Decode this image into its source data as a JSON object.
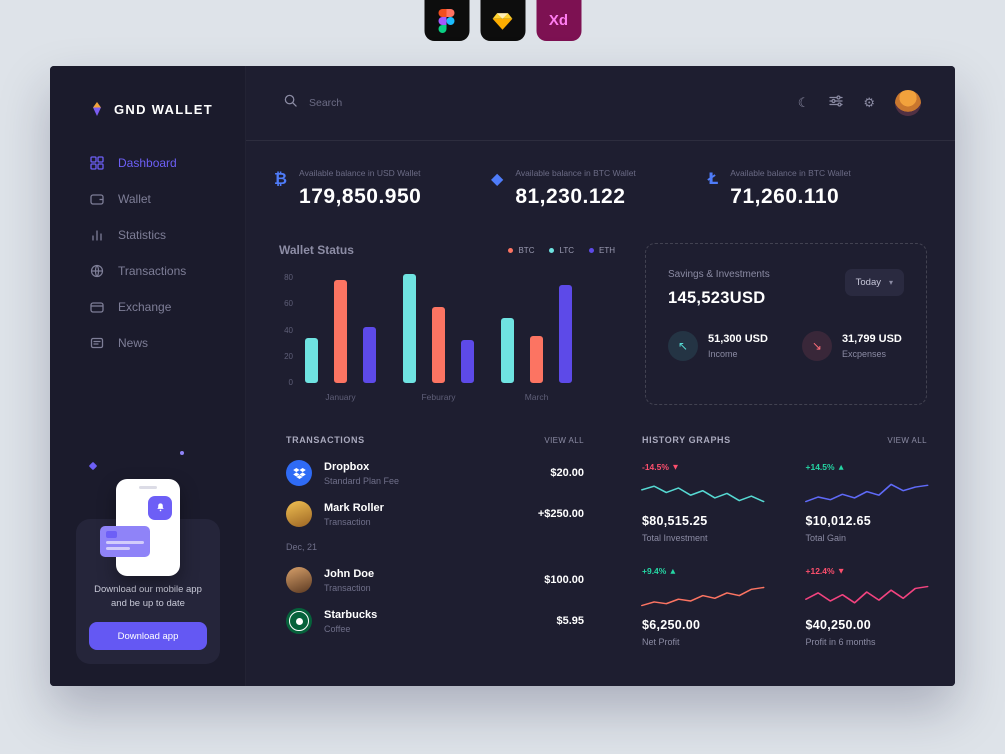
{
  "colors": {
    "accent": "#6d5ff6",
    "page_background": "#dee3e9",
    "dashboard_background": "#1e1e30",
    "sidebar_background": "#1b1b2c",
    "positive": "#25d6a4",
    "negative": "#fd4f6d"
  },
  "header_icons": [
    {
      "name": "figma"
    },
    {
      "name": "sketch"
    },
    {
      "name": "adobe-xd",
      "label": "Xd"
    }
  ],
  "sidebar": {
    "logo_text": "GND WALLET",
    "nav": [
      {
        "label": "Dashboard",
        "active": true
      },
      {
        "label": "Wallet"
      },
      {
        "label": "Statistics"
      },
      {
        "label": "Transactions"
      },
      {
        "label": "Exchange"
      },
      {
        "label": "News"
      }
    ],
    "promo": {
      "text": "Download our mobile app and be up to date",
      "button_label": "Download app"
    }
  },
  "topbar": {
    "search_placeholder": "Search"
  },
  "balances": [
    {
      "icon": "bitcoin-icon",
      "glyph": "₿",
      "label": "Available balance in USD Wallet",
      "value": "179,850.950"
    },
    {
      "icon": "ethereum-icon",
      "glyph": "◆",
      "label": "Available balance in BTC Wallet",
      "value": "81,230.122"
    },
    {
      "icon": "litecoin-icon",
      "glyph": "Ł",
      "label": "Available balance in BTC Wallet",
      "value": "71,260.110"
    }
  ],
  "wallet_status": {
    "legend": [
      {
        "label": "BTC",
        "color": "#fc7462"
      },
      {
        "label": "LTC",
        "color": "#6fe3e1"
      },
      {
        "label": "ETH",
        "color": "#5d4ae8"
      }
    ]
  },
  "chart_data": [
    {
      "type": "bar",
      "title": "Wallet Status",
      "categories": [
        "January",
        "Feburary",
        "March"
      ],
      "series": [
        {
          "name": "LTC",
          "color": "#6fe3e1",
          "values": [
            33,
            79,
            47
          ]
        },
        {
          "name": "BTC",
          "color": "#fc7462",
          "values": [
            75,
            55,
            34
          ]
        },
        {
          "name": "ETH",
          "color": "#5d4ae8",
          "values": [
            41,
            31,
            71
          ]
        }
      ],
      "ylim": [
        0,
        80
      ],
      "yticks": [
        0,
        20,
        40,
        60,
        80
      ],
      "grid": false,
      "legend_position": "top-right"
    },
    {
      "type": "line",
      "name": "total-investment-trend",
      "color": "#56d9d2",
      "values": [
        16,
        20,
        13,
        18,
        10,
        15,
        7,
        12,
        4,
        9,
        3
      ]
    },
    {
      "type": "line",
      "name": "total-gain-trend",
      "color": "#5f6af8",
      "values": [
        3,
        8,
        5,
        11,
        7,
        14,
        10,
        22,
        15,
        19,
        21
      ]
    },
    {
      "type": "line",
      "name": "net-profit-trend",
      "color": "#fc7462",
      "values": [
        3,
        7,
        5,
        10,
        8,
        14,
        11,
        17,
        14,
        21,
        23
      ]
    },
    {
      "type": "line",
      "name": "profit-6-months-trend",
      "color": "#f3437f",
      "values": [
        10,
        17,
        8,
        15,
        6,
        18,
        9,
        20,
        11,
        22,
        24
      ]
    }
  ],
  "savings": {
    "title": "Savings & Investments",
    "value": "145,523USD",
    "period_selector": "Today",
    "chevron": "▾",
    "income": {
      "glyph": "↖",
      "value": "51,300 USD",
      "label": "Income",
      "color": "#56d9d2"
    },
    "expenses": {
      "glyph": "↘",
      "value": "31,799 USD",
      "label": "Excpenses",
      "color": "#fd6d79"
    }
  },
  "transactions": {
    "title": "TRANSACTIONS",
    "view_all": "VIEW ALL",
    "date_divider": "Dec, 21",
    "items": [
      {
        "icon": "dropbox-icon",
        "name": "Dropbox",
        "subtitle": "Standard Plan Fee",
        "amount": "$20.00"
      },
      {
        "icon": "avatar",
        "name": "Mark Roller",
        "subtitle": "Transaction",
        "amount": "+$250.00"
      },
      {
        "icon": "avatar",
        "name": "John Doe",
        "subtitle": "Transaction",
        "amount": "$100.00"
      },
      {
        "icon": "starbucks-icon",
        "name": "Starbucks",
        "subtitle": "Coffee",
        "amount": "$5.95"
      }
    ]
  },
  "history": {
    "title": "HISTORY GRAPHS",
    "view_all": "VIEW ALL",
    "cards": [
      {
        "change": "-14.5%",
        "arrow": "▼",
        "change_color": "#fd4f6d",
        "value": "$80,515.25",
        "label": "Total Investment"
      },
      {
        "change": "+14.5%",
        "arrow": "▲",
        "change_color": "#25d6a4",
        "value": "$10,012.65",
        "label": "Total Gain"
      },
      {
        "change": "+9.4%",
        "arrow": "▲",
        "change_color": "#25d6a4",
        "value": "$6,250.00",
        "label": "Net Profit"
      },
      {
        "change": "+12.4%",
        "arrow": "▼",
        "change_color": "#fd4f6d",
        "value": "$40,250.00",
        "label": "Profit in 6 months"
      }
    ]
  }
}
